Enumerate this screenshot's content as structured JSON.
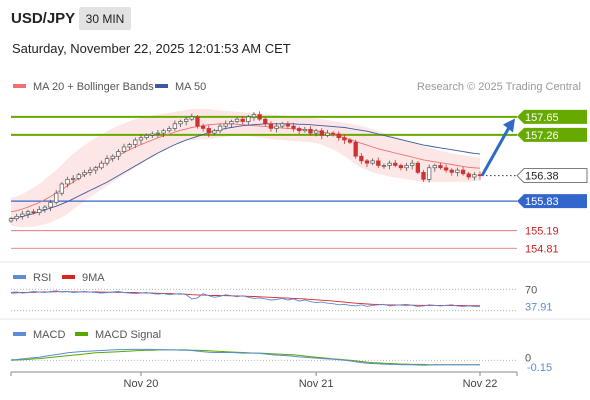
{
  "header": {
    "symbol": "USD/JPY",
    "timeframe": "30 MIN",
    "datetime": "Saturday, November 22, 2025 12:01:53 AM CET"
  },
  "colors": {
    "resistance": "#66aa00",
    "support": "#3366cc",
    "minor_support": "#e06666",
    "current_price": "#333333",
    "candle_up": "#555555",
    "candle_down": "#cc3333",
    "ma20": "#f07070",
    "bollinger_fill": "#fde0e0",
    "ma50": "#3b5ba0",
    "rsi": "#5b8bd9",
    "rsi_ma": "#dd2222",
    "macd": "#5b8bd9",
    "macd_signal": "#55aa00",
    "arrow": "#2d6bc4"
  },
  "chart_data": [
    {
      "type": "candlestick",
      "panel": "price",
      "legend": [
        "MA 20 + Bollinger Bands",
        "MA 50"
      ],
      "legend_placement": "top-left",
      "source_note": "Research © 2025 Trading Central",
      "x_ticks": [
        "Nov 20",
        "Nov 21",
        "Nov 22"
      ],
      "ylim": [
        154.6,
        157.95
      ],
      "levels": [
        {
          "value": 157.65,
          "label": "157.65",
          "kind": "resistance"
        },
        {
          "value": 157.26,
          "label": "157.26",
          "kind": "resistance"
        },
        {
          "value": 156.38,
          "label": "156.38",
          "kind": "last"
        },
        {
          "value": 155.83,
          "label": "155.83",
          "kind": "support"
        },
        {
          "value": 155.19,
          "label": "155.19",
          "kind": "minor_support"
        },
        {
          "value": 154.81,
          "label": "154.81",
          "kind": "minor_support"
        }
      ],
      "forecast_arrow": {
        "from": 156.38,
        "to": 157.55,
        "direction": "up"
      },
      "close": [
        155.45,
        155.5,
        155.55,
        155.6,
        155.58,
        155.65,
        155.7,
        155.8,
        156.0,
        156.2,
        156.3,
        156.32,
        156.4,
        156.45,
        156.5,
        156.55,
        156.65,
        156.75,
        156.8,
        156.9,
        157.0,
        157.05,
        157.15,
        157.2,
        157.25,
        157.28,
        157.3,
        157.35,
        157.4,
        157.5,
        157.55,
        157.6,
        157.65,
        157.45,
        157.4,
        157.3,
        157.35,
        157.45,
        157.5,
        157.55,
        157.6,
        157.55,
        157.65,
        157.7,
        157.6,
        157.5,
        157.4,
        157.45,
        157.5,
        157.45,
        157.4,
        157.35,
        157.38,
        157.3,
        157.35,
        157.25,
        157.3,
        157.28,
        157.2,
        157.15,
        157.1,
        156.8,
        156.7,
        156.65,
        156.7,
        156.6,
        156.6,
        156.65,
        156.6,
        156.55,
        156.6,
        156.65,
        156.45,
        156.3,
        156.55,
        156.6,
        156.55,
        156.5,
        156.45,
        156.5,
        156.42,
        156.35,
        156.4,
        156.38
      ],
      "ma20": [
        155.6,
        155.62,
        155.66,
        155.7,
        155.75,
        155.8,
        155.86,
        155.93,
        156.0,
        156.08,
        156.16,
        156.24,
        156.32,
        156.4,
        156.47,
        156.54,
        156.61,
        156.68,
        156.75,
        156.82,
        156.88,
        156.94,
        157.0,
        157.05,
        157.1,
        157.15,
        157.2,
        157.24,
        157.28,
        157.32,
        157.36,
        157.39,
        157.42,
        157.44,
        157.46,
        157.48,
        157.49,
        157.5,
        157.5,
        157.5,
        157.49,
        157.48,
        157.47,
        157.46,
        157.45,
        157.44,
        157.43,
        157.42,
        157.41,
        157.4,
        157.39,
        157.38,
        157.37,
        157.36,
        157.34,
        157.32,
        157.3,
        157.27,
        157.24,
        157.2,
        157.16,
        157.12,
        157.08,
        157.04,
        157.0,
        156.96,
        156.93,
        156.9,
        156.87,
        156.84,
        156.81,
        156.78,
        156.75,
        156.72,
        156.7,
        156.68,
        156.66,
        156.64,
        156.62,
        156.6,
        156.58,
        156.56,
        156.55,
        156.54
      ],
      "bb_upper": [
        155.9,
        155.93,
        155.98,
        156.05,
        156.12,
        156.2,
        156.3,
        156.4,
        156.5,
        156.62,
        156.74,
        156.85,
        156.95,
        157.04,
        157.12,
        157.2,
        157.27,
        157.34,
        157.4,
        157.46,
        157.51,
        157.56,
        157.6,
        157.63,
        157.66,
        157.68,
        157.7,
        157.72,
        157.74,
        157.76,
        157.78,
        157.8,
        157.82,
        157.82,
        157.82,
        157.82,
        157.8,
        157.79,
        157.78,
        157.77,
        157.76,
        157.75,
        157.74,
        157.73,
        157.72,
        157.71,
        157.7,
        157.69,
        157.68,
        157.67,
        157.66,
        157.65,
        157.64,
        157.63,
        157.62,
        157.6,
        157.58,
        157.56,
        157.54,
        157.52,
        157.5,
        157.48,
        157.45,
        157.42,
        157.38,
        157.34,
        157.3,
        157.26,
        157.22,
        157.18,
        157.14,
        157.1,
        157.06,
        157.02,
        156.98,
        156.95,
        156.92,
        156.89,
        156.86,
        156.84,
        156.82,
        156.8,
        156.78,
        156.77
      ],
      "bb_lower": [
        155.3,
        155.28,
        155.27,
        155.27,
        155.28,
        155.3,
        155.33,
        155.37,
        155.42,
        155.48,
        155.56,
        155.65,
        155.74,
        155.83,
        155.92,
        156.0,
        156.08,
        156.16,
        156.24,
        156.32,
        156.4,
        156.48,
        156.56,
        156.64,
        156.72,
        156.8,
        156.87,
        156.94,
        157.0,
        157.06,
        157.1,
        157.13,
        157.15,
        157.16,
        157.16,
        157.17,
        157.18,
        157.2,
        157.22,
        157.23,
        157.24,
        157.24,
        157.23,
        157.22,
        157.2,
        157.19,
        157.17,
        157.16,
        157.15,
        157.14,
        157.13,
        157.12,
        157.11,
        157.1,
        157.08,
        157.05,
        157.0,
        156.95,
        156.88,
        156.8,
        156.72,
        156.62,
        156.55,
        156.5,
        156.45,
        156.42,
        156.39,
        156.36,
        156.34,
        156.32,
        156.3,
        156.28,
        156.26,
        156.24,
        156.24,
        156.24,
        156.24,
        156.24,
        156.24,
        156.25,
        156.25,
        156.25,
        156.26,
        156.27
      ],
      "ma50": [
        155.45,
        155.47,
        155.5,
        155.53,
        155.56,
        155.6,
        155.64,
        155.68,
        155.72,
        155.77,
        155.82,
        155.88,
        155.94,
        156.0,
        156.06,
        156.12,
        156.18,
        156.24,
        156.31,
        156.38,
        156.45,
        156.52,
        156.59,
        156.66,
        156.73,
        156.8,
        156.87,
        156.93,
        156.99,
        157.05,
        157.1,
        157.15,
        157.19,
        157.23,
        157.27,
        157.31,
        157.34,
        157.37,
        157.4,
        157.42,
        157.44,
        157.46,
        157.47,
        157.48,
        157.49,
        157.5,
        157.5,
        157.5,
        157.5,
        157.5,
        157.5,
        157.49,
        157.49,
        157.48,
        157.47,
        157.46,
        157.45,
        157.44,
        157.43,
        157.42,
        157.4,
        157.38,
        157.36,
        157.34,
        157.31,
        157.28,
        157.25,
        157.22,
        157.19,
        157.16,
        157.13,
        157.1,
        157.07,
        157.04,
        157.02,
        157.0,
        156.98,
        156.96,
        156.94,
        156.92,
        156.9,
        156.88,
        156.86,
        156.85
      ]
    },
    {
      "type": "line",
      "panel": "rsi",
      "legend": [
        "RSI",
        "9MA"
      ],
      "legend_placement": "top-left",
      "ylim": [
        20,
        80
      ],
      "ref_lines": [
        {
          "value": 70,
          "label": "70"
        },
        {
          "value": 30,
          "label": ""
        }
      ],
      "last_value_label": "37.91",
      "series": [
        {
          "name": "RSI",
          "values": [
            64,
            65,
            63,
            64,
            66,
            65,
            64,
            66,
            67,
            65,
            66,
            64,
            65,
            66,
            65,
            64,
            63,
            64,
            65,
            66,
            64,
            63,
            62,
            63,
            64,
            62,
            61,
            62,
            60,
            61,
            62,
            60,
            52,
            54,
            62,
            58,
            55,
            57,
            60,
            58,
            56,
            58,
            55,
            53,
            54,
            52,
            50,
            51,
            53,
            50,
            52,
            48,
            50,
            47,
            45,
            46,
            44,
            43,
            41,
            42,
            40,
            39,
            41,
            38,
            40,
            41,
            42,
            39,
            40,
            41,
            42,
            40,
            38,
            39,
            41,
            40,
            39,
            40,
            41,
            39,
            38,
            39,
            38,
            37.91
          ]
        },
        {
          "name": "9MA",
          "values": [
            63,
            63.5,
            64,
            64,
            64.5,
            65,
            65,
            65.2,
            65.5,
            65.5,
            65.6,
            65.4,
            65.3,
            65.2,
            65.1,
            65,
            64.8,
            64.6,
            64.5,
            64.4,
            64.3,
            64.1,
            63.8,
            63.5,
            63.2,
            62.9,
            62.6,
            62.3,
            62,
            61.6,
            61.2,
            60.8,
            60,
            59.5,
            59.2,
            58.8,
            58.5,
            58.2,
            58,
            57.8,
            57.6,
            57.4,
            57,
            56.5,
            56,
            55.5,
            55,
            54.5,
            54,
            53.5,
            53,
            52.5,
            52,
            51.2,
            50.4,
            49.6,
            48.8,
            48,
            47,
            46,
            45,
            44,
            43.2,
            42.5,
            42,
            41.6,
            41.2,
            40.9,
            40.6,
            40.4,
            40.3,
            40.2,
            40.1,
            40,
            39.9,
            39.9,
            39.8,
            39.8,
            39.7,
            39.6,
            39.5,
            39.4,
            39.3,
            39.2
          ]
        }
      ]
    },
    {
      "type": "line",
      "panel": "macd",
      "legend": [
        "MACD",
        "MACD Signal"
      ],
      "legend_placement": "top-left",
      "ylim": [
        -0.3,
        0.6
      ],
      "ref_lines": [
        {
          "value": 0,
          "label": "0"
        }
      ],
      "last_value_label": "-0.15",
      "series": [
        {
          "name": "MACD",
          "values": [
            0.02,
            0.03,
            0.05,
            0.07,
            0.09,
            0.11,
            0.14,
            0.17,
            0.2,
            0.23,
            0.26,
            0.28,
            0.3,
            0.31,
            0.32,
            0.33,
            0.34,
            0.35,
            0.36,
            0.37,
            0.37,
            0.38,
            0.38,
            0.38,
            0.38,
            0.38,
            0.37,
            0.37,
            0.36,
            0.36,
            0.35,
            0.35,
            0.34,
            0.32,
            0.3,
            0.28,
            0.27,
            0.27,
            0.27,
            0.27,
            0.26,
            0.25,
            0.25,
            0.25,
            0.24,
            0.22,
            0.2,
            0.18,
            0.17,
            0.16,
            0.14,
            0.12,
            0.11,
            0.09,
            0.08,
            0.06,
            0.05,
            0.04,
            0.02,
            0.0,
            -0.02,
            -0.05,
            -0.08,
            -0.1,
            -0.11,
            -0.12,
            -0.13,
            -0.14,
            -0.14,
            -0.15,
            -0.15,
            -0.15,
            -0.16,
            -0.17,
            -0.16,
            -0.15,
            -0.15,
            -0.15,
            -0.15,
            -0.15,
            -0.15,
            -0.15,
            -0.15,
            -0.15
          ]
        },
        {
          "name": "MACD Signal",
          "values": [
            0.0,
            0.01,
            0.02,
            0.03,
            0.05,
            0.06,
            0.08,
            0.1,
            0.12,
            0.14,
            0.16,
            0.18,
            0.2,
            0.22,
            0.24,
            0.26,
            0.27,
            0.28,
            0.29,
            0.3,
            0.31,
            0.32,
            0.33,
            0.34,
            0.35,
            0.35,
            0.36,
            0.36,
            0.36,
            0.36,
            0.36,
            0.36,
            0.35,
            0.35,
            0.34,
            0.33,
            0.32,
            0.31,
            0.3,
            0.29,
            0.28,
            0.27,
            0.26,
            0.25,
            0.25,
            0.24,
            0.23,
            0.22,
            0.21,
            0.2,
            0.19,
            0.17,
            0.15,
            0.13,
            0.11,
            0.09,
            0.07,
            0.05,
            0.04,
            0.02,
            0.0,
            -0.02,
            -0.04,
            -0.06,
            -0.08,
            -0.09,
            -0.1,
            -0.11,
            -0.12,
            -0.13,
            -0.13,
            -0.14,
            -0.14,
            -0.14,
            -0.15,
            -0.15,
            -0.15,
            -0.15,
            -0.15,
            -0.15,
            -0.15,
            -0.15,
            -0.15,
            -0.15
          ]
        }
      ]
    }
  ]
}
